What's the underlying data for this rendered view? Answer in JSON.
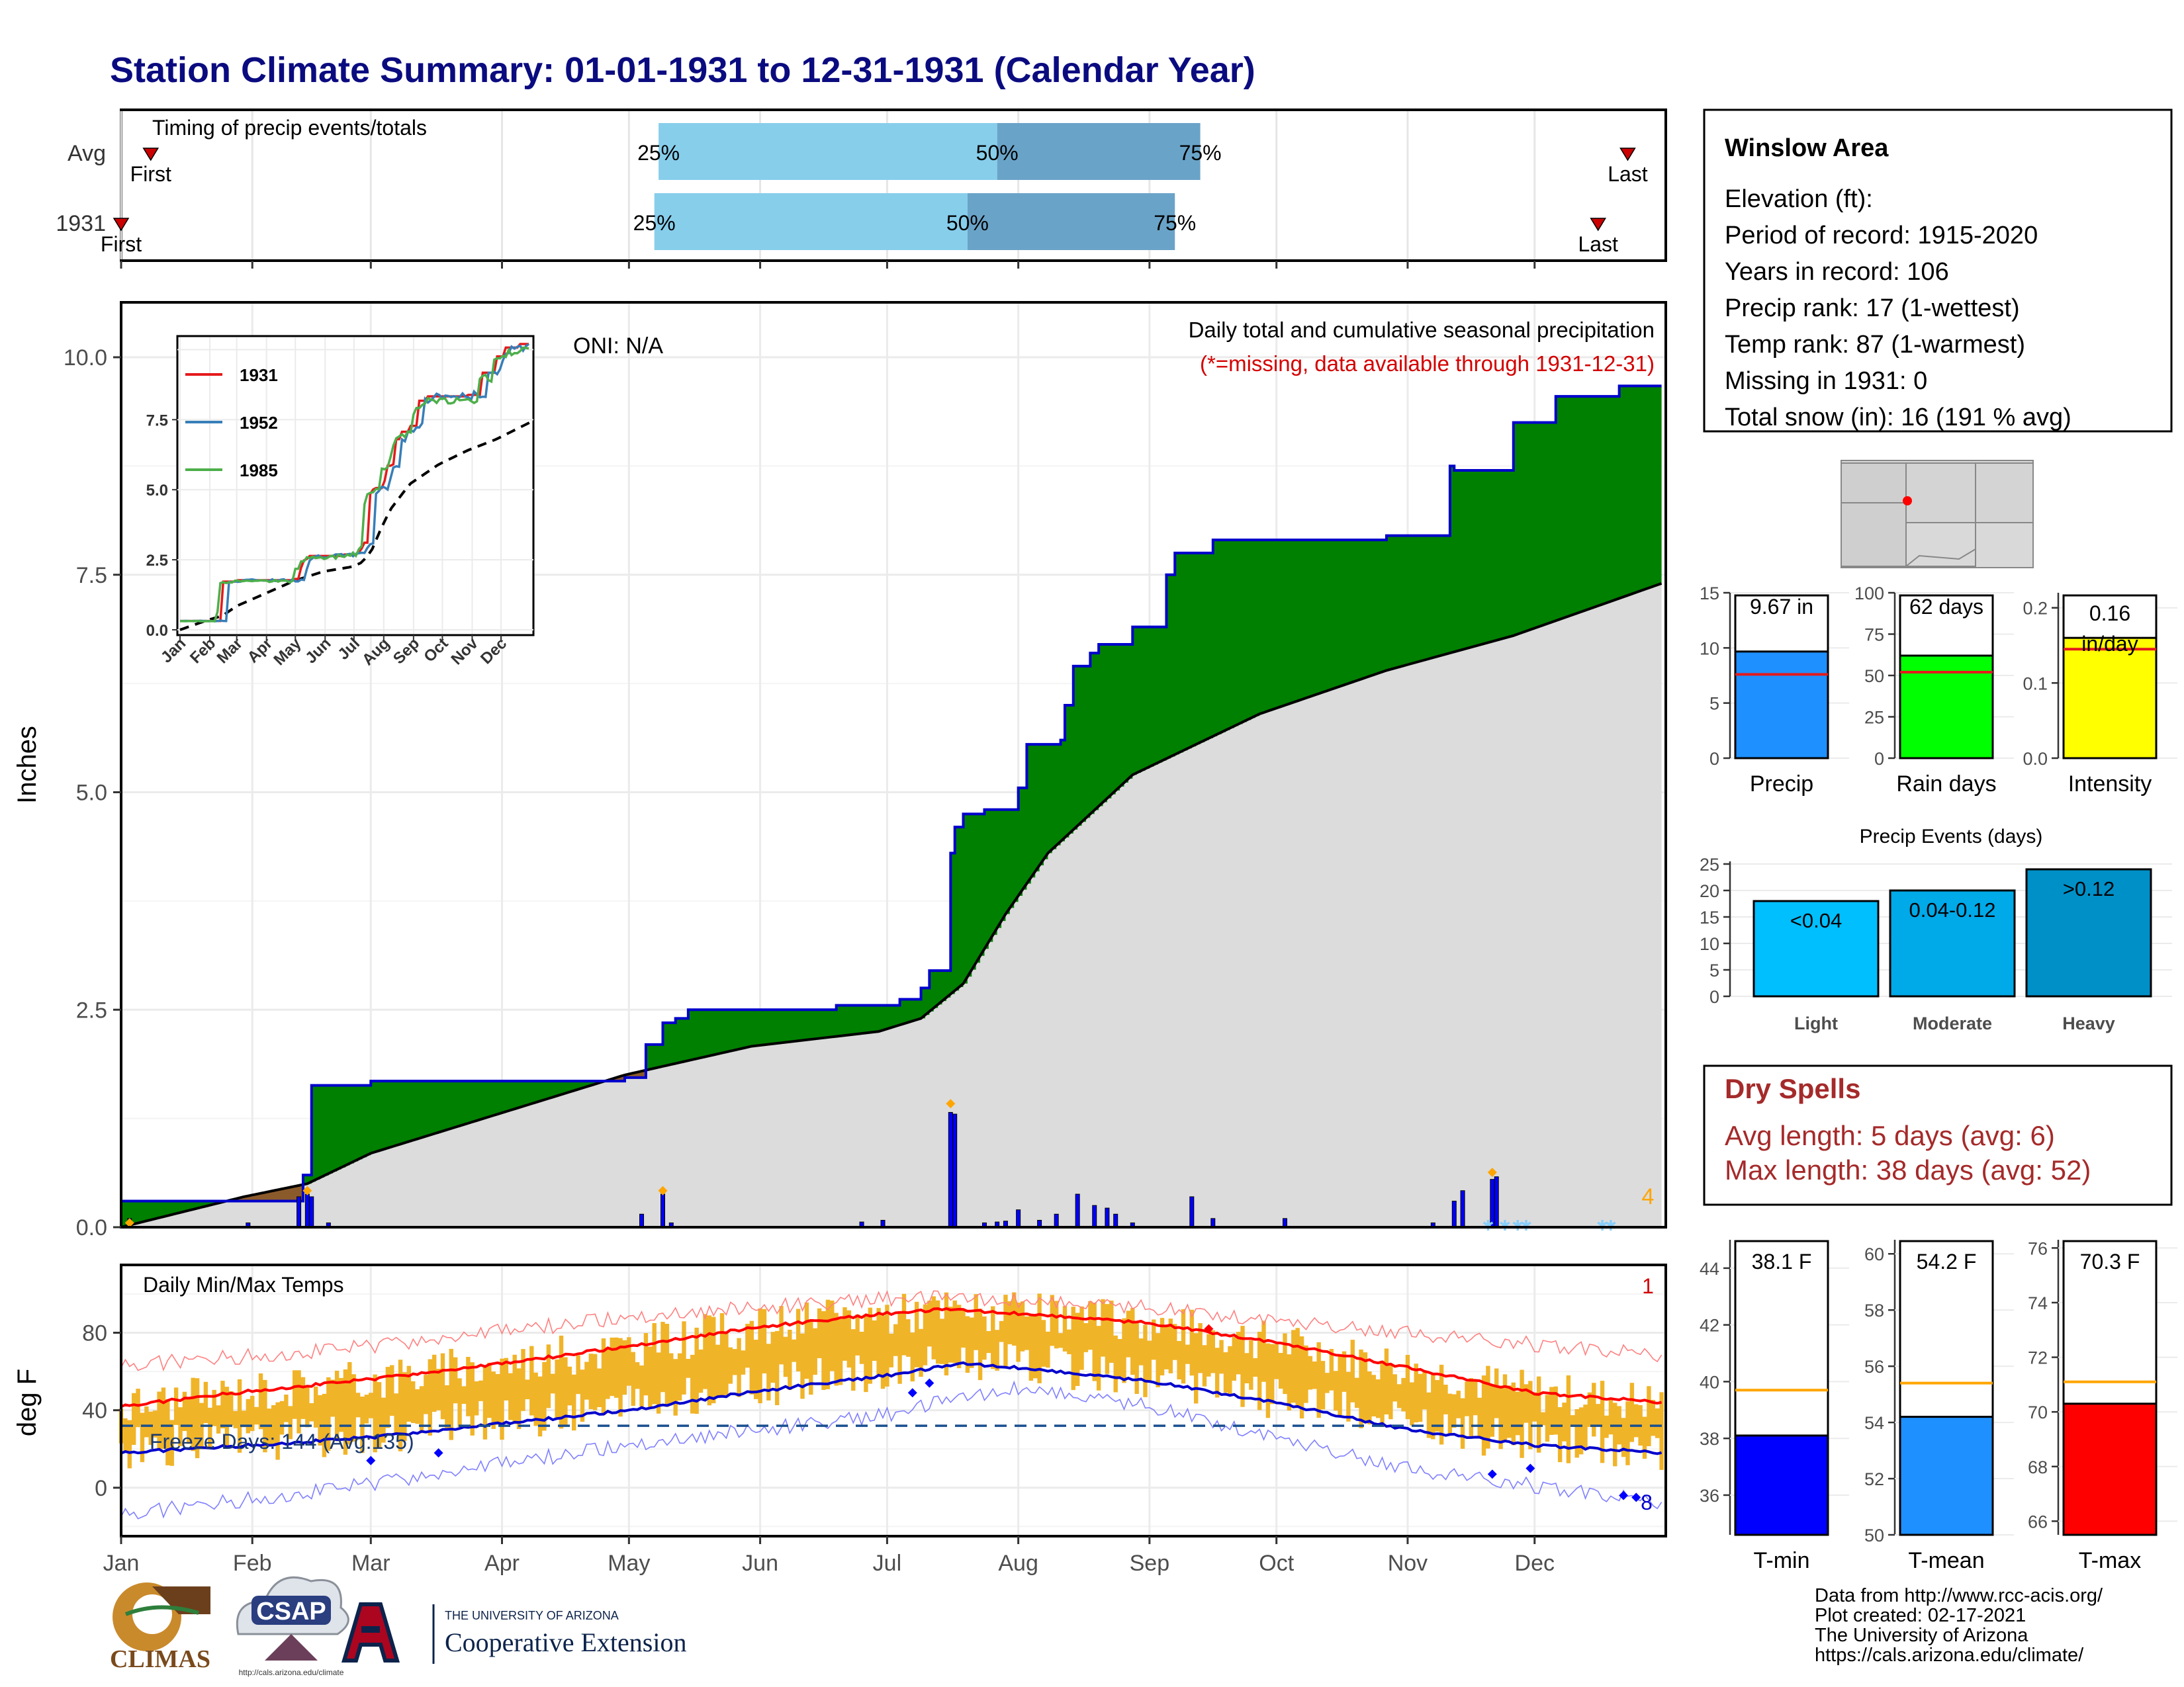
{
  "title": "Station Climate Summary: 01-01-1931 to 12-31-1931 (Calendar Year)",
  "timing": {
    "label": "Timing of precip events/totals",
    "rows": [
      {
        "name": "Avg",
        "first": "First",
        "last": "Last",
        "q25_label": "25%",
        "q50_label": "50%",
        "q75_label": "75%",
        "first_day": 8,
        "q25_day": 128,
        "q50_day": 208,
        "q75_day": 256,
        "last_day": 357
      },
      {
        "name": "1931",
        "first": "First",
        "last": "Last",
        "q25_label": "25%",
        "q50_label": "50%",
        "q75_label": "75%",
        "first_day": 1,
        "q25_day": 127,
        "q50_day": 201,
        "q75_day": 250,
        "last_day": 350
      }
    ]
  },
  "station": {
    "name": "Winslow Area",
    "lines": [
      "Elevation (ft):",
      "Period of record: 1915-2020",
      "Years in record: 106",
      "Precip rank: 17 (1-wettest)",
      "Temp rank: 87 (1-warmest)",
      "Missing in 1931: 0",
      "Total snow (in): 16 (191 % avg)"
    ]
  },
  "precip_panel": {
    "ylabel": "Inches",
    "yticks": [
      "0.0",
      "2.5",
      "5.0",
      "7.5",
      "10.0"
    ],
    "oni": "ONI: N/A",
    "caption": "Daily total and cumulative seasonal precipitation",
    "missing_note": "(*=missing, data available through 1931-12-31)",
    "snow_count": "4",
    "inset_yticks": [
      "0.0",
      "2.5",
      "5.0",
      "7.5"
    ],
    "inset_legend": [
      "1931",
      "1952",
      "1985"
    ]
  },
  "temp_panel": {
    "ylabel": "deg F",
    "yticks": [
      "0",
      "40",
      "80"
    ],
    "caption": "Daily Min/Max Temps",
    "freeze_label": "Freeze Days: 144 (Avg:135)",
    "record_high_count": "1",
    "record_low_count": "8"
  },
  "months": [
    "Jan",
    "Feb",
    "Mar",
    "Apr",
    "May",
    "Jun",
    "Jul",
    "Aug",
    "Sep",
    "Oct",
    "Nov",
    "Dec"
  ],
  "summary_bars": {
    "precip": {
      "label": "Precip",
      "value_label": "9.67 in",
      "value": 9.67,
      "avg": 7.6,
      "yticks": [
        "0",
        "5",
        "10",
        "15"
      ],
      "color": "#1e90ff"
    },
    "rain_days": {
      "label": "Rain days",
      "value_label": "62 days",
      "value": 62,
      "avg": 52,
      "yticks": [
        "0",
        "25",
        "50",
        "75",
        "100"
      ],
      "color": "#00ff00"
    },
    "intensity": {
      "label": "Intensity",
      "value_label": "0.16 in/day",
      "value_line1": "0.16",
      "value_line2": "in/day",
      "value": 0.16,
      "avg": 0.145,
      "yticks": [
        "0.0",
        "0.1",
        "0.2"
      ],
      "color": "#ffff00"
    }
  },
  "events": {
    "title": "Precip Events (days)",
    "yticks": [
      "0",
      "5",
      "10",
      "15",
      "20",
      "25"
    ],
    "bars": [
      {
        "name": "Light",
        "label": "<0.04",
        "value": 18,
        "color": "#00bfff"
      },
      {
        "name": "Moderate",
        "label": "0.04-0.12",
        "value": 20,
        "color": "#00a9e8"
      },
      {
        "name": "Heavy",
        "label": ">0.12",
        "value": 24,
        "color": "#0090c8"
      }
    ]
  },
  "dry_spells": {
    "title": "Dry Spells",
    "avg_line": "Avg length: 5 days (avg: 6)",
    "max_line": "Max length: 38 days (avg: 52)"
  },
  "temp_bars": [
    {
      "label": "T-min",
      "value_label": "38.1 F",
      "value": 38.1,
      "avg": 39.7,
      "yticks": [
        "36",
        "38",
        "40",
        "42",
        "44"
      ],
      "ymin": 34.6,
      "ymax": 45,
      "color": "#0000ff"
    },
    {
      "label": "T-mean",
      "value_label": "54.2 F",
      "value": 54.2,
      "avg": 55.4,
      "yticks": [
        "50",
        "52",
        "54",
        "56",
        "58",
        "60"
      ],
      "ymin": 50,
      "ymax": 60.5,
      "color": "#1e90ff"
    },
    {
      "label": "T-max",
      "value_label": "70.3 F",
      "value": 70.3,
      "avg": 71.1,
      "yticks": [
        "66",
        "68",
        "70",
        "72",
        "74",
        "76"
      ],
      "ymin": 65.5,
      "ymax": 76.3,
      "color": "#ff0000"
    }
  ],
  "credits": [
    "Data from http://www.rcc-acis.org/",
    "Plot created: 02-17-2021",
    "The University of Arizona",
    "https://cals.arizona.edu/climate/"
  ],
  "logos": {
    "climas": "CLIMAS",
    "csap": "CSAP",
    "csap_url": "http://cals.arizona.edu/climate",
    "ua_small": "THE UNIVERSITY OF ARIZONA",
    "ua_big": "Cooperative Extension"
  },
  "chart_data": {
    "type": "area",
    "title": "Daily total and cumulative seasonal precipitation",
    "xlabel": "",
    "ylabel": "Inches",
    "ylim": [
      0,
      10.4
    ],
    "cumulative_1931": {
      "x_day": [
        1,
        10,
        25,
        40,
        44,
        46,
        60,
        90,
        120,
        125,
        129,
        132,
        135,
        150,
        170,
        185,
        190,
        192,
        196,
        197,
        198,
        200,
        205,
        213,
        215,
        223,
        224,
        226,
        230,
        232,
        235,
        240,
        248,
        250,
        259,
        300,
        315,
        316,
        330,
        340,
        355,
        365
      ],
      "y": [
        0.3,
        0.3,
        0.3,
        0.3,
        0.6,
        1.63,
        1.68,
        1.68,
        1.72,
        2.1,
        2.35,
        2.4,
        2.5,
        2.5,
        2.55,
        2.62,
        2.75,
        2.95,
        2.95,
        4.3,
        4.6,
        4.75,
        4.8,
        5.05,
        5.55,
        5.6,
        6.0,
        6.45,
        6.6,
        6.7,
        6.7,
        6.9,
        7.5,
        7.75,
        7.9,
        7.95,
        8.75,
        8.7,
        9.25,
        9.55,
        9.67,
        9.67
      ]
    },
    "cumulative_avg": {
      "x_day": [
        1,
        30,
        45,
        60,
        90,
        120,
        150,
        180,
        190,
        200,
        210,
        220,
        240,
        270,
        300,
        330,
        365
      ],
      "y": [
        0.0,
        0.35,
        0.5,
        0.85,
        1.3,
        1.75,
        2.08,
        2.25,
        2.4,
        2.8,
        3.6,
        4.3,
        5.2,
        5.9,
        6.4,
        6.8,
        7.4
      ]
    },
    "daily_precip": [
      {
        "day": 3,
        "in": 0.1
      },
      {
        "day": 31,
        "in": 0.05
      },
      {
        "day": 43,
        "in": 0.35
      },
      {
        "day": 45,
        "in": 0.38
      },
      {
        "day": 46,
        "in": 0.35
      },
      {
        "day": 50,
        "in": 0.05
      },
      {
        "day": 124,
        "in": 0.15
      },
      {
        "day": 129,
        "in": 0.38
      },
      {
        "day": 131,
        "in": 0.05
      },
      {
        "day": 176,
        "in": 0.06
      },
      {
        "day": 181,
        "in": 0.08
      },
      {
        "day": 197,
        "in": 1.32
      },
      {
        "day": 198,
        "in": 1.3
      },
      {
        "day": 205,
        "in": 0.05
      },
      {
        "day": 208,
        "in": 0.06
      },
      {
        "day": 210,
        "in": 0.07
      },
      {
        "day": 213,
        "in": 0.2
      },
      {
        "day": 218,
        "in": 0.08
      },
      {
        "day": 222,
        "in": 0.15
      },
      {
        "day": 227,
        "in": 0.38
      },
      {
        "day": 231,
        "in": 0.25
      },
      {
        "day": 234,
        "in": 0.22
      },
      {
        "day": 236,
        "in": 0.15
      },
      {
        "day": 240,
        "in": 0.05
      },
      {
        "day": 254,
        "in": 0.35
      },
      {
        "day": 259,
        "in": 0.1
      },
      {
        "day": 276,
        "in": 0.1
      },
      {
        "day": 311,
        "in": 0.05
      },
      {
        "day": 316,
        "in": 0.3
      },
      {
        "day": 318,
        "in": 0.42
      },
      {
        "day": 325,
        "in": 0.55
      },
      {
        "day": 326,
        "in": 0.58
      }
    ],
    "temps": {
      "ylim": [
        -25,
        115
      ],
      "avg_max": {
        "x_day": [
          1,
          32,
          60,
          91,
          121,
          152,
          182,
          196,
          213,
          244,
          274,
          305,
          335,
          365
        ],
        "y": [
          42,
          50,
          56,
          64,
          73,
          83,
          90,
          92,
          90,
          85,
          75,
          62,
          49,
          44
        ]
      },
      "avg_min": {
        "x_day": [
          1,
          32,
          60,
          91,
          121,
          152,
          182,
          200,
          213,
          244,
          274,
          305,
          335,
          365
        ],
        "y": [
          18,
          22,
          26,
          33,
          40,
          50,
          58,
          64,
          62,
          55,
          44,
          30,
          22,
          18
        ]
      },
      "record_max": {
        "x_day": [
          1,
          60,
          121,
          182,
          213,
          244,
          305,
          365
        ],
        "y": [
          63,
          73,
          88,
          98,
          97,
          93,
          80,
          68
        ]
      },
      "record_min": {
        "x_day": [
          1,
          60,
          121,
          182,
          213,
          244,
          305,
          365
        ],
        "y": [
          -14,
          2,
          22,
          38,
          52,
          42,
          10,
          -8
        ]
      },
      "freeze_line": 32
    }
  }
}
